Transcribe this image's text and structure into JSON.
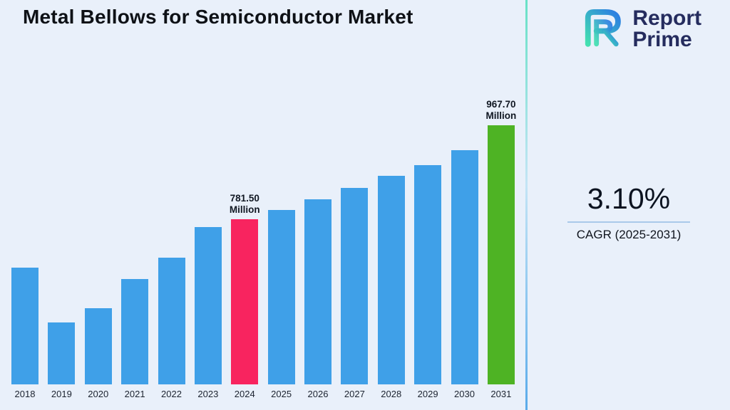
{
  "title": "Metal Bellows for Semiconductor Market",
  "logo": {
    "line1": "Report",
    "line2": "Prime"
  },
  "cagr": {
    "value": "3.10%",
    "label": "CAGR (2025-2031)"
  },
  "colors": {
    "background": "#E9F0FA",
    "bar_default": "#3FA0E8",
    "bar_highlight_2024": "#F8245F",
    "bar_highlight_2031": "#4EB324",
    "logo_navy": "#252c5e",
    "divider_top": "#59dfc0",
    "divider_bottom": "#4aa3e8"
  },
  "chart_data": {
    "type": "bar",
    "title": "Metal Bellows for Semiconductor Market",
    "categories": [
      "2018",
      "2019",
      "2020",
      "2021",
      "2022",
      "2023",
      "2024",
      "2025",
      "2026",
      "2027",
      "2028",
      "2029",
      "2030",
      "2031"
    ],
    "values": [
      686,
      577,
      605,
      663,
      705,
      766,
      781.5,
      800,
      821,
      844,
      868,
      889,
      918,
      967.7
    ],
    "unit": "Million",
    "xlabel": "",
    "ylabel": "",
    "ylim": [
      455,
      990
    ],
    "grid": false,
    "legend": false,
    "bar_color_default": "#3FA0E8",
    "highlights": {
      "2024": {
        "color": "#F8245F",
        "label_lines": [
          "781.50",
          "Million"
        ]
      },
      "2031": {
        "color": "#4EB324",
        "label_lines": [
          "967.70",
          "Million"
        ]
      }
    }
  }
}
